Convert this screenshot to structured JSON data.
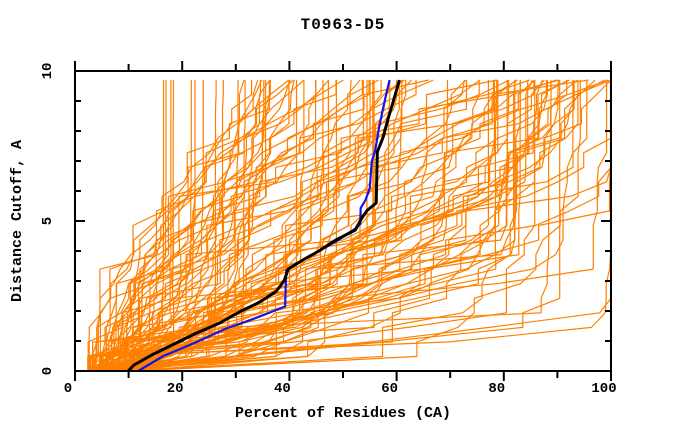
{
  "title": "T0963-D5",
  "colors": {
    "background": "#ffffff",
    "frame": "#000000",
    "orange": "#ff8000",
    "black": "#000000",
    "blue": "#1414e6"
  },
  "chart_data": {
    "type": "line",
    "title": "T0963-D5",
    "xlabel": "Percent of Residues (CA)",
    "ylabel": "Distance Cutoff, A",
    "xlim": [
      0,
      100
    ],
    "ylim": [
      0,
      10
    ],
    "x_major_ticks": [
      0,
      20,
      40,
      60,
      80,
      100
    ],
    "x_minor_step": 10,
    "y_major_ticks": [
      0,
      5,
      10
    ],
    "y_minor_step": 1,
    "grid": false,
    "legend": null,
    "series": [
      {
        "name": "black-model-curve",
        "color": "#000000",
        "width": 3,
        "points": [
          [
            9.9,
            0
          ],
          [
            11,
            0.2
          ],
          [
            14.5,
            0.55
          ],
          [
            18.5,
            0.9
          ],
          [
            22.5,
            1.25
          ],
          [
            27,
            1.6
          ],
          [
            31,
            2.0
          ],
          [
            34.5,
            2.3
          ],
          [
            37.5,
            2.65
          ],
          [
            39,
            3.0
          ],
          [
            39.8,
            3.4
          ],
          [
            42.5,
            3.7
          ],
          [
            45.5,
            4.0
          ],
          [
            48.5,
            4.35
          ],
          [
            52.3,
            4.7
          ],
          [
            53.5,
            5.1
          ],
          [
            54.5,
            5.35
          ],
          [
            56.2,
            5.6
          ],
          [
            56.3,
            6.5
          ],
          [
            56.4,
            7.3
          ],
          [
            57.5,
            7.8
          ],
          [
            58.4,
            8.4
          ],
          [
            59.4,
            9.0
          ],
          [
            60.2,
            9.5
          ],
          [
            60.5,
            9.7
          ]
        ]
      },
      {
        "name": "blue-model-curve",
        "color": "#1414e6",
        "width": 2.2,
        "points": [
          [
            11.8,
            0
          ],
          [
            16.5,
            0.5
          ],
          [
            22.5,
            0.95
          ],
          [
            28,
            1.4
          ],
          [
            33.5,
            1.75
          ],
          [
            39.2,
            2.15
          ],
          [
            39.4,
            3.35
          ],
          [
            40.5,
            3.5
          ],
          [
            45,
            3.95
          ],
          [
            49,
            4.35
          ],
          [
            52.5,
            4.77
          ],
          [
            53.2,
            4.9
          ],
          [
            53.3,
            5.43
          ],
          [
            54.2,
            5.7
          ],
          [
            55,
            6.1
          ],
          [
            55.2,
            6.6
          ],
          [
            55.4,
            7.0
          ],
          [
            56,
            7.35
          ],
          [
            56.6,
            8.0
          ],
          [
            57.4,
            8.7
          ],
          [
            58.2,
            9.34
          ],
          [
            58.7,
            9.7
          ]
        ]
      }
    ],
    "ensemble": {
      "name": "orange-model-curves",
      "description": "Ensemble of predicted-model GDT curves fanning from lower-left (2-12% at cutoff 0) to upper-right (16-100% at cutoff ~9.7)",
      "color": "#ff8000",
      "width": 1.2,
      "count": 120,
      "seed": 7,
      "cut_end": 9.7,
      "steps": 20,
      "start_range": [
        2.4,
        12
      ],
      "end_range": [
        15.5,
        100
      ]
    }
  }
}
